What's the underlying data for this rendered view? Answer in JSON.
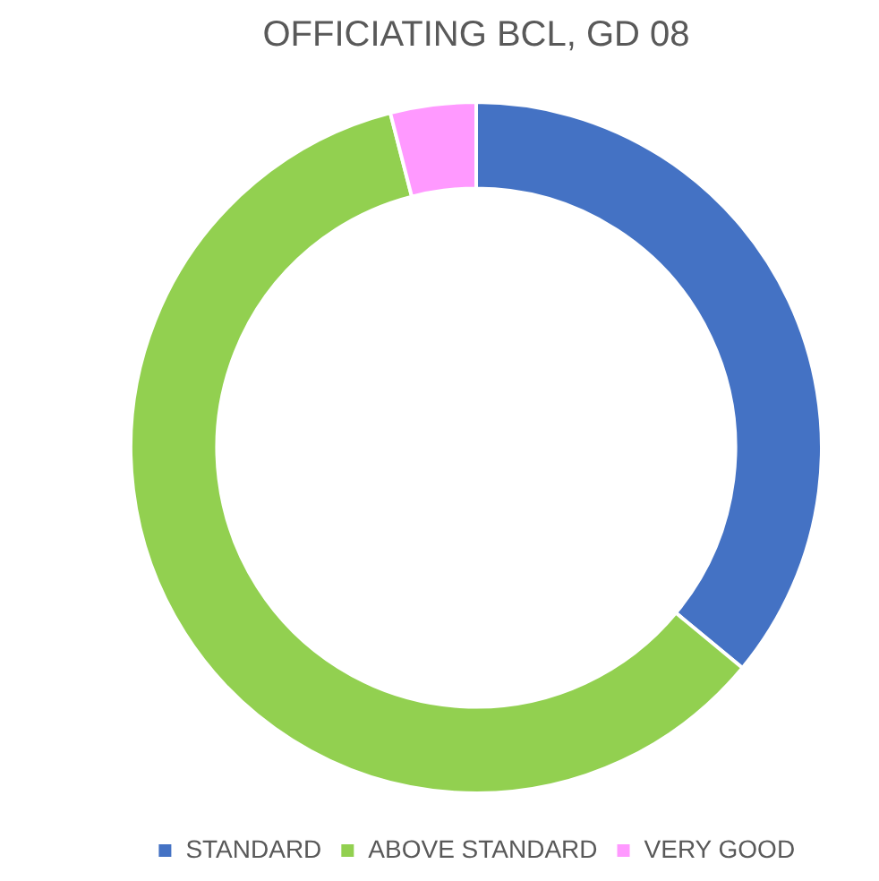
{
  "chart_data": {
    "type": "donut",
    "title": "OFFICIATING BCL, GD 08",
    "categories": [
      "STANDARD",
      "ABOVE STANDARD",
      "VERY GOOD"
    ],
    "values": [
      36,
      60,
      4
    ],
    "colors": [
      "#4472c4",
      "#92d050",
      "#ff99ff"
    ],
    "legend": "bottom"
  }
}
